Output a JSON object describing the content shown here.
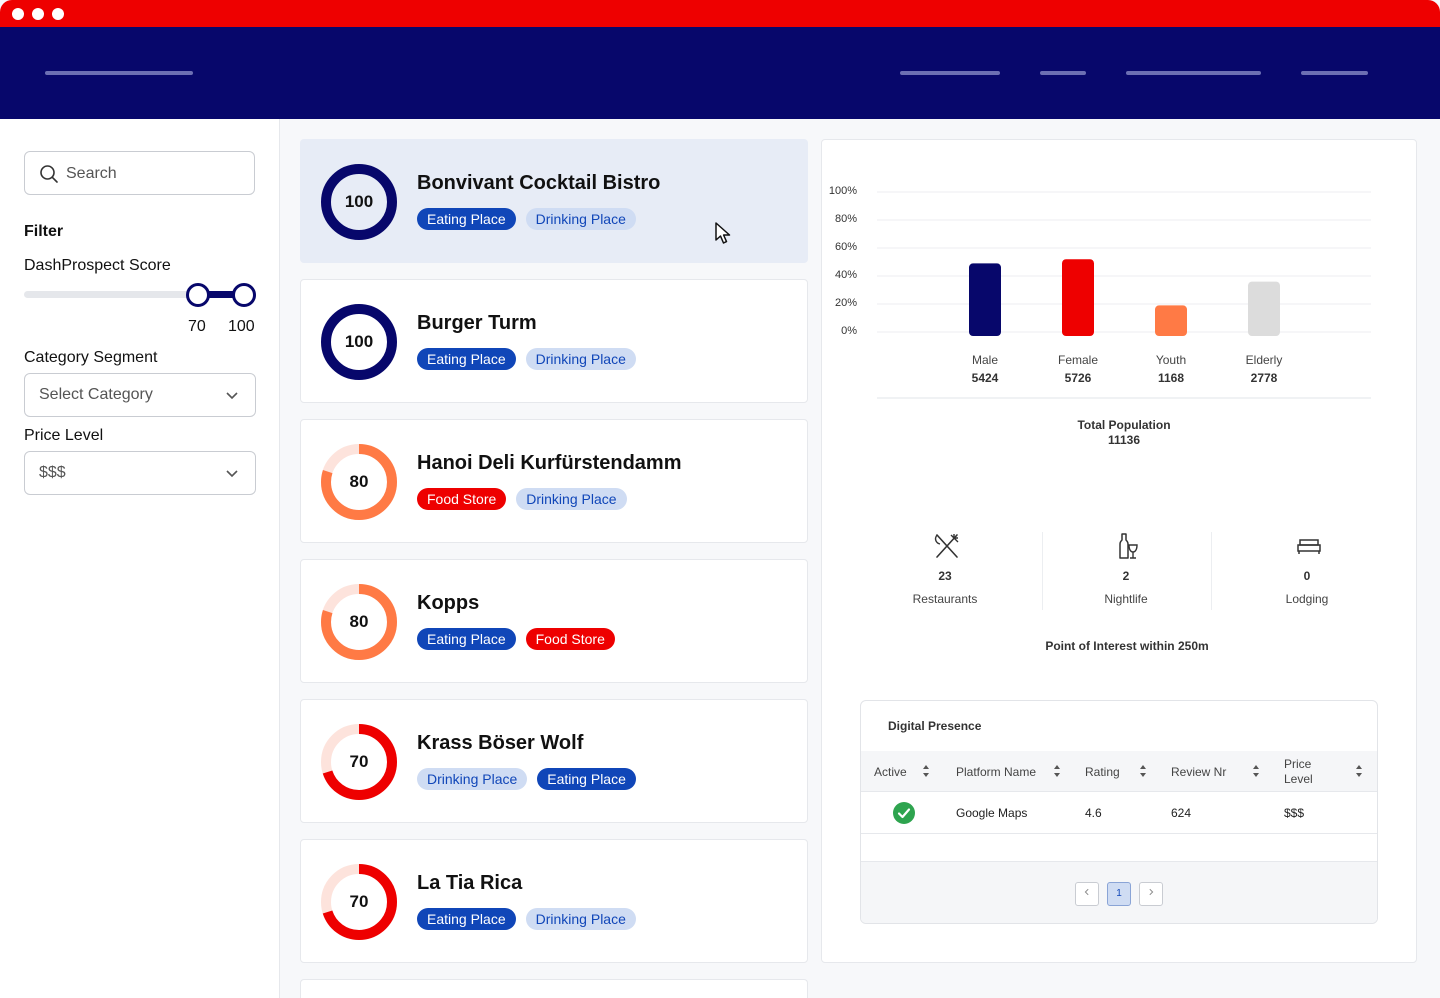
{
  "sidebar": {
    "search_placeholder": "Search",
    "filter_title": "Filter",
    "score_label": "DashProspect Score",
    "score_min": "70",
    "score_max": "100",
    "category_label": "Category Segment",
    "category_placeholder": "Select Category",
    "price_label": "Price Level",
    "price_value": "$$$"
  },
  "places": [
    {
      "name": "Bonvivant Cocktail Bistro",
      "score": "100",
      "tags": [
        "Eating Place",
        "Drinking Place"
      ]
    },
    {
      "name": "Burger Turm",
      "score": "100",
      "tags": [
        "Eating Place",
        "Drinking Place"
      ]
    },
    {
      "name": "Hanoi Deli Kurfürstendamm",
      "score": "80",
      "tags": [
        "Food Store",
        "Drinking Place"
      ]
    },
    {
      "name": "Kopps",
      "score": "80",
      "tags": [
        "Eating Place",
        "Food Store"
      ]
    },
    {
      "name": "Krass Böser Wolf",
      "score": "70",
      "tags": [
        "Drinking Place",
        "Eating Place"
      ]
    },
    {
      "name": "La Tia Rica",
      "score": "70",
      "tags": [
        "Eating Place",
        "Drinking Place"
      ]
    }
  ],
  "colors": {
    "navy": "#07076b",
    "red": "#ee0000",
    "orange": "#ff7a45",
    "grey": "#dcdcdc",
    "tag_blue": "#1046b8",
    "tag_soft_blue": "#cfdcf3"
  },
  "chart_data": {
    "type": "bar",
    "categories": [
      "Male",
      "Female",
      "Youth",
      "Elderly"
    ],
    "counts": [
      "5424",
      "5726",
      "1168",
      "2778"
    ],
    "values": [
      49,
      52,
      19,
      36
    ],
    "ylim": [
      0,
      100
    ],
    "yticks": [
      "100%",
      "80%",
      "60%",
      "40%",
      "20%",
      "0%"
    ],
    "grid": true,
    "bar_colors": [
      "#07076b",
      "#ee0000",
      "#ff7a45",
      "#dcdcdc"
    ]
  },
  "population": {
    "label": "Total Population",
    "value": "11136"
  },
  "poi": {
    "items": [
      {
        "count": "23",
        "label": "Restaurants",
        "icon": "fork-knife-icon"
      },
      {
        "count": "2",
        "label": "Nightlife",
        "icon": "bottle-glass-icon"
      },
      {
        "count": "0",
        "label": "Lodging",
        "icon": "bed-icon"
      }
    ],
    "caption": "Point of Interest within 250m"
  },
  "digital_presence": {
    "title": "Digital Presence",
    "columns": [
      "Active",
      "Platform Name",
      "Rating",
      "Review Nr",
      "Price Level"
    ],
    "rows": [
      {
        "active": true,
        "platform": "Google Maps",
        "rating": "4.6",
        "reviews": "624",
        "price": "$$$"
      }
    ],
    "pages": [
      "1"
    ],
    "current_page": "1"
  }
}
